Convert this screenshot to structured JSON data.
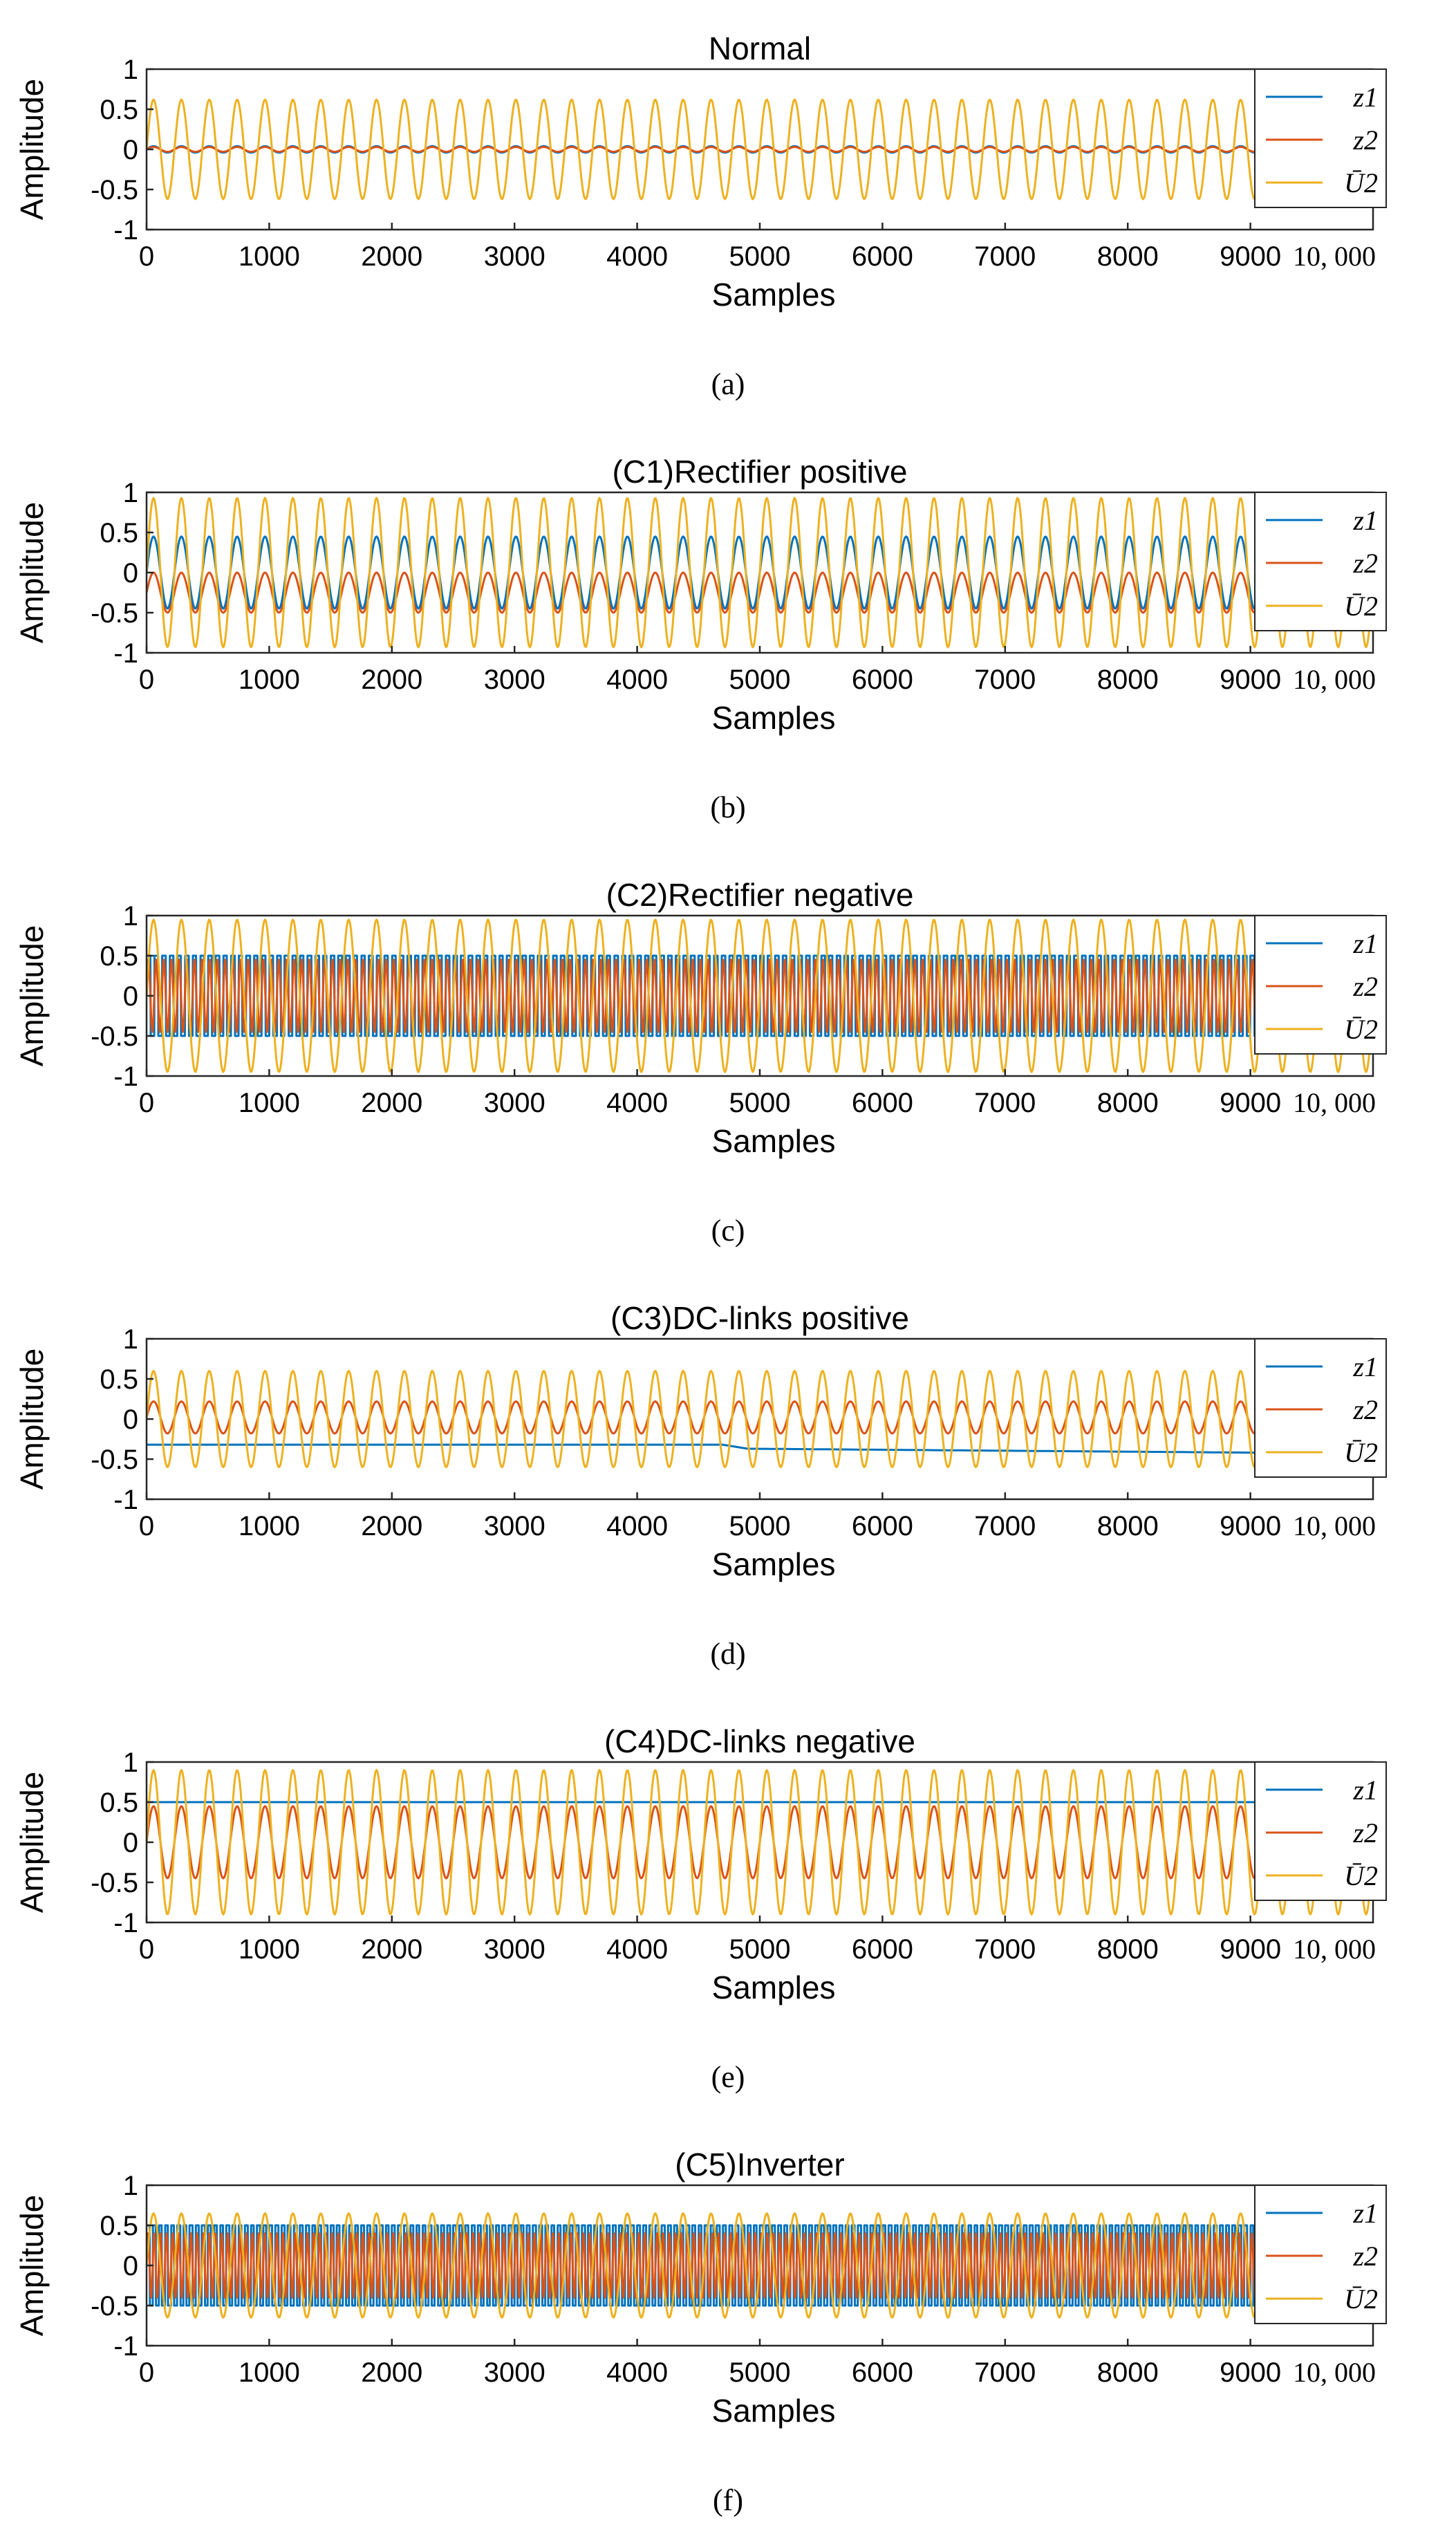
{
  "chart_data": [
    {
      "type": "line",
      "title": "Normal",
      "caption": "(a)",
      "xlabel": "Samples",
      "ylabel": "Amplitude",
      "xlim": [
        0,
        10000
      ],
      "ylim": [
        -1,
        1
      ],
      "xticks": [
        "0",
        "1000",
        "2000",
        "3000",
        "4000",
        "5000",
        "6000",
        "7000",
        "8000",
        "9000",
        "10, 000"
      ],
      "yticks": [
        "1",
        "0.5",
        "0",
        "-0.5",
        "-1"
      ],
      "legend": [
        "z1",
        "z2",
        "Ū2"
      ],
      "legend_position": "top-right",
      "series": [
        {
          "name": "z1",
          "kind": "sine",
          "amplitude": 0.04,
          "offset": 0.0,
          "cycles": 44
        },
        {
          "name": "z2",
          "kind": "sine",
          "amplitude": 0.03,
          "offset": 0.0,
          "cycles": 44
        },
        {
          "name": "Ū2",
          "kind": "sine",
          "amplitude": 0.62,
          "offset": 0.0,
          "cycles": 44
        }
      ]
    },
    {
      "type": "line",
      "title": "(C1)Rectifier positive",
      "caption": "(b)",
      "xlabel": "Samples",
      "ylabel": "Amplitude",
      "xlim": [
        0,
        10000
      ],
      "ylim": [
        -1,
        1
      ],
      "xticks": [
        "0",
        "1000",
        "2000",
        "3000",
        "4000",
        "5000",
        "6000",
        "7000",
        "8000",
        "9000",
        "10, 000"
      ],
      "yticks": [
        "1",
        "0.5",
        "0",
        "-0.5",
        "-1"
      ],
      "legend": [
        "z1",
        "z2",
        "Ū2"
      ],
      "legend_position": "top-right",
      "series": [
        {
          "name": "z1",
          "kind": "sine",
          "amplitude": 0.45,
          "offset": 0.0,
          "cycles": 44
        },
        {
          "name": "z2",
          "kind": "sine",
          "amplitude": 0.25,
          "offset": -0.25,
          "cycles": 44
        },
        {
          "name": "Ū2",
          "kind": "sine",
          "amplitude": 0.93,
          "offset": 0.0,
          "cycles": 44
        }
      ]
    },
    {
      "type": "line",
      "title": "(C2)Rectifier negative",
      "caption": "(c)",
      "xlabel": "Samples",
      "ylabel": "Amplitude",
      "xlim": [
        0,
        10000
      ],
      "ylim": [
        -1,
        1
      ],
      "xticks": [
        "0",
        "1000",
        "2000",
        "3000",
        "4000",
        "5000",
        "6000",
        "7000",
        "8000",
        "9000",
        "10, 000"
      ],
      "yticks": [
        "1",
        "0.5",
        "0",
        "-0.5",
        "-1"
      ],
      "legend": [
        "z1",
        "z2",
        "Ū2"
      ],
      "legend_position": "top-right",
      "series": [
        {
          "name": "z1",
          "kind": "square",
          "amplitude": 0.5,
          "offset": 0.0,
          "cycles": 160
        },
        {
          "name": "z2",
          "kind": "sine",
          "amplitude": 0.45,
          "offset": 0.0,
          "cycles": 160
        },
        {
          "name": "Ū2",
          "kind": "sine",
          "amplitude": 0.95,
          "offset": 0.0,
          "cycles": 44
        }
      ]
    },
    {
      "type": "line",
      "title": "(C3)DC-links positive",
      "caption": "(d)",
      "xlabel": "Samples",
      "ylabel": "Amplitude",
      "xlim": [
        0,
        10000
      ],
      "ylim": [
        -1,
        1
      ],
      "xticks": [
        "0",
        "1000",
        "2000",
        "3000",
        "4000",
        "5000",
        "6000",
        "7000",
        "8000",
        "9000",
        "10, 000"
      ],
      "yticks": [
        "1",
        "0.5",
        "0",
        "-0.5",
        "-1"
      ],
      "legend": [
        "z1",
        "z2",
        "Ū2"
      ],
      "legend_position": "top-right",
      "series": [
        {
          "name": "z1",
          "kind": "piecewise",
          "points": [
            [
              0,
              -0.32
            ],
            [
              4700,
              -0.32
            ],
            [
              4900,
              -0.37
            ],
            [
              9100,
              -0.42
            ],
            [
              10000,
              -0.43
            ]
          ]
        },
        {
          "name": "z2",
          "kind": "sine",
          "amplitude": 0.2,
          "offset": 0.02,
          "cycles": 44
        },
        {
          "name": "Ū2",
          "kind": "sine",
          "amplitude": 0.6,
          "offset": 0.0,
          "cycles": 44
        }
      ]
    },
    {
      "type": "line",
      "title": "(C4)DC-links negative",
      "caption": "(e)",
      "xlabel": "Samples",
      "ylabel": "Amplitude",
      "xlim": [
        0,
        10000
      ],
      "ylim": [
        -1,
        1
      ],
      "xticks": [
        "0",
        "1000",
        "2000",
        "3000",
        "4000",
        "5000",
        "6000",
        "7000",
        "8000",
        "9000",
        "10, 000"
      ],
      "yticks": [
        "1",
        "0.5",
        "0",
        "-0.5",
        "-1"
      ],
      "legend": [
        "z1",
        "z2",
        "Ū2"
      ],
      "legend_position": "top-right",
      "series": [
        {
          "name": "z1",
          "kind": "piecewise",
          "points": [
            [
              0,
              0.5
            ],
            [
              10000,
              0.5
            ]
          ]
        },
        {
          "name": "z2",
          "kind": "sine",
          "amplitude": 0.45,
          "offset": 0.0,
          "cycles": 44
        },
        {
          "name": "Ū2",
          "kind": "sine",
          "amplitude": 0.9,
          "offset": 0.0,
          "cycles": 44
        }
      ]
    },
    {
      "type": "line",
      "title": "(C5)Inverter",
      "caption": "(f)",
      "xlabel": "Samples",
      "ylabel": "Amplitude",
      "xlim": [
        0,
        10000
      ],
      "ylim": [
        -1,
        1
      ],
      "xticks": [
        "0",
        "1000",
        "2000",
        "3000",
        "4000",
        "5000",
        "6000",
        "7000",
        "8000",
        "9000",
        "10, 000"
      ],
      "yticks": [
        "1",
        "0.5",
        "0",
        "-0.5",
        "-1"
      ],
      "legend": [
        "z1",
        "z2",
        "Ū2"
      ],
      "legend_position": "top-right",
      "series": [
        {
          "name": "z1",
          "kind": "square",
          "amplitude": 0.5,
          "offset": 0.0,
          "cycles": 200
        },
        {
          "name": "z2",
          "kind": "sine",
          "amplitude": 0.4,
          "offset": 0.0,
          "cycles": 200
        },
        {
          "name": "Ū2",
          "kind": "sine",
          "amplitude": 0.65,
          "offset": 0.0,
          "cycles": 44
        }
      ]
    }
  ],
  "colors": {
    "z1": "#0072BD",
    "z2": "#D95319",
    "Ū2": "#EDB120",
    "axis": "#262626"
  }
}
